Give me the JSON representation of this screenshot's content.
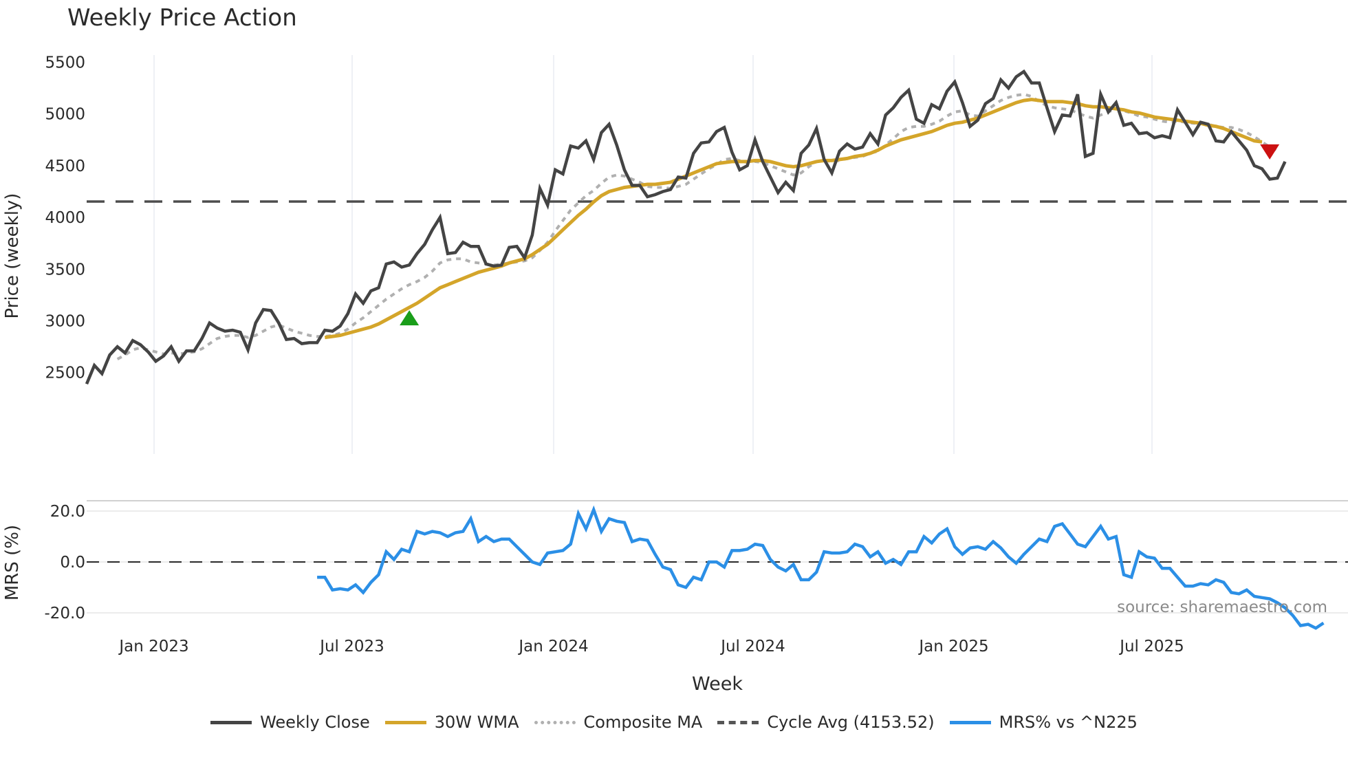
{
  "title": "Weekly Price Action",
  "source": "source: sharemaestro.com",
  "legend": [
    {
      "label": "Weekly Close",
      "color": "#444444",
      "style": "solid"
    },
    {
      "label": "30W WMA",
      "color": "#d4a52a",
      "style": "solid"
    },
    {
      "label": "Composite MA",
      "color": "#b0b0b0",
      "style": "dotted"
    },
    {
      "label": "Cycle Avg (4153.52)",
      "color": "#555555",
      "style": "dashed"
    },
    {
      "label": "MRS% vs ^N225",
      "color": "#2b8fe6",
      "style": "solid"
    }
  ],
  "chart_data": [
    {
      "type": "line",
      "title": "Weekly Price Action",
      "xlabel": "Week",
      "ylabel": "Price (weekly)",
      "ylim": [
        2400,
        5560
      ],
      "yticks": [
        2500,
        3000,
        3500,
        4000,
        4500,
        5000,
        5500
      ],
      "xticks": [
        "Jan 2023",
        "Jul 2023",
        "Jan 2024",
        "Jul 2024",
        "Jan 2025",
        "Jul 2025"
      ],
      "grid": true,
      "legend_position": "bottom",
      "cycle_avg": 4153.52,
      "signals": [
        {
          "type": "buy",
          "marker": "triangle-up",
          "color": "#1a9e1a",
          "week_index": 42,
          "value": 3010
        },
        {
          "type": "sell",
          "marker": "triangle-down",
          "color": "#cc1111",
          "week_index": 154,
          "value": 4640
        }
      ],
      "series": [
        {
          "name": "Weekly Close",
          "values": [
            2390,
            2570,
            2490,
            2670,
            2750,
            2690,
            2810,
            2770,
            2700,
            2610,
            2660,
            2750,
            2610,
            2710,
            2710,
            2830,
            2980,
            2930,
            2900,
            2910,
            2890,
            2720,
            2980,
            3110,
            3100,
            2980,
            2820,
            2830,
            2780,
            2790,
            2790,
            2910,
            2900,
            2950,
            3070,
            3260,
            3170,
            3290,
            3320,
            3550,
            3570,
            3520,
            3540,
            3650,
            3740,
            3880,
            4000,
            3650,
            3660,
            3760,
            3720,
            3720,
            3550,
            3530,
            3540,
            3710,
            3720,
            3610,
            3830,
            4280,
            4120,
            4460,
            4420,
            4690,
            4670,
            4740,
            4560,
            4820,
            4900,
            4700,
            4460,
            4310,
            4310,
            4200,
            4220,
            4250,
            4270,
            4390,
            4380,
            4620,
            4720,
            4730,
            4830,
            4870,
            4630,
            4460,
            4500,
            4750,
            4540,
            4390,
            4240,
            4340,
            4260,
            4620,
            4700,
            4860,
            4560,
            4430,
            4640,
            4710,
            4660,
            4680,
            4810,
            4710,
            4990,
            5060,
            5160,
            5230,
            4950,
            4910,
            5090,
            5050,
            5220,
            5310,
            5110,
            4880,
            4940,
            5100,
            5150,
            5330,
            5250,
            5360,
            5410,
            5300,
            5300,
            5060,
            4830,
            4990,
            4980,
            5190,
            4590,
            4620,
            5190,
            5020,
            5110,
            4890,
            4910,
            4810,
            4820,
            4770,
            4790,
            4770,
            5040,
            4920,
            4800,
            4920,
            4900,
            4740,
            4730,
            4830,
            4740,
            4650,
            4500,
            4470,
            4370,
            4380,
            4540
          ]
        },
        {
          "name": "30W WMA",
          "values": [
            null,
            null,
            null,
            null,
            null,
            null,
            null,
            null,
            null,
            null,
            null,
            null,
            null,
            null,
            null,
            null,
            null,
            null,
            null,
            null,
            null,
            null,
            null,
            null,
            null,
            null,
            null,
            null,
            null,
            null,
            null,
            2840,
            2850,
            2860,
            2880,
            2900,
            2920,
            2940,
            2970,
            3010,
            3050,
            3090,
            3130,
            3170,
            3220,
            3270,
            3320,
            3350,
            3380,
            3410,
            3440,
            3470,
            3490,
            3510,
            3530,
            3560,
            3580,
            3600,
            3640,
            3690,
            3740,
            3810,
            3880,
            3950,
            4020,
            4080,
            4150,
            4210,
            4250,
            4270,
            4290,
            4300,
            4310,
            4320,
            4320,
            4330,
            4340,
            4370,
            4400,
            4430,
            4460,
            4490,
            4520,
            4530,
            4540,
            4540,
            4540,
            4550,
            4550,
            4540,
            4520,
            4500,
            4490,
            4500,
            4520,
            4540,
            4550,
            4550,
            4560,
            4570,
            4590,
            4600,
            4620,
            4650,
            4690,
            4720,
            4750,
            4770,
            4790,
            4810,
            4830,
            4860,
            4890,
            4910,
            4920,
            4940,
            4960,
            4990,
            5020,
            5050,
            5080,
            5110,
            5130,
            5140,
            5130,
            5120,
            5120,
            5120,
            5110,
            5100,
            5080,
            5070,
            5070,
            5060,
            5050,
            5040,
            5020,
            5010,
            4990,
            4970,
            4960,
            4950,
            4940,
            4930,
            4920,
            4910,
            4890,
            4880,
            4860,
            4830,
            4800,
            4770,
            4740,
            4730
          ]
        },
        {
          "name": "Composite MA",
          "values": [
            null,
            null,
            null,
            null,
            2630,
            2670,
            2720,
            2740,
            2720,
            2700,
            2680,
            2690,
            2680,
            2690,
            2700,
            2730,
            2780,
            2830,
            2850,
            2860,
            2860,
            2840,
            2860,
            2900,
            2940,
            2960,
            2930,
            2900,
            2880,
            2860,
            2850,
            2850,
            2860,
            2880,
            2920,
            2980,
            3030,
            3090,
            3150,
            3210,
            3260,
            3310,
            3350,
            3380,
            3420,
            3480,
            3560,
            3590,
            3600,
            3600,
            3570,
            3560,
            3550,
            3540,
            3550,
            3560,
            3570,
            3580,
            3610,
            3680,
            3760,
            3870,
            3970,
            4070,
            4140,
            4210,
            4260,
            4330,
            4390,
            4410,
            4400,
            4370,
            4340,
            4300,
            4290,
            4290,
            4280,
            4300,
            4320,
            4370,
            4420,
            4470,
            4510,
            4560,
            4570,
            4550,
            4530,
            4540,
            4530,
            4500,
            4470,
            4440,
            4410,
            4430,
            4490,
            4540,
            4550,
            4540,
            4550,
            4570,
            4580,
            4590,
            4620,
            4640,
            4700,
            4760,
            4830,
            4870,
            4880,
            4880,
            4900,
            4930,
            4980,
            5020,
            5030,
            4990,
            4980,
            5030,
            5080,
            5130,
            5160,
            5180,
            5190,
            5170,
            5120,
            5080,
            5060,
            5050,
            5040,
            5010,
            4980,
            4960,
            4990,
            5020,
            5050,
            5030,
            5010,
            4980,
            4970,
            4950,
            4930,
            4920,
            4930,
            4920,
            4910,
            4910,
            4900,
            4880,
            4870,
            4870,
            4850,
            4820,
            4780,
            4730,
            4680,
            4650,
            null
          ]
        },
        {
          "name": "Cycle Avg (4153.52)",
          "values": [
            4153.52
          ]
        }
      ]
    },
    {
      "type": "line",
      "title": "",
      "xlabel": "Week",
      "ylabel": "MRS (%)",
      "ylim": [
        -26,
        26
      ],
      "yticks": [
        -20.0,
        0.0,
        20.0
      ],
      "xticks": [
        "Jan 2023",
        "Jul 2023",
        "Jan 2024",
        "Jul 2024",
        "Jan 2025",
        "Jul 2025"
      ],
      "series": [
        {
          "name": "MRS% vs ^N225",
          "start_index": 30,
          "values": [
            -6,
            -6,
            -11,
            -10.5,
            -11,
            -9,
            -12,
            -8,
            -5,
            4,
            1,
            5,
            4,
            12,
            11,
            12,
            11.5,
            10,
            11.5,
            12,
            17,
            8,
            10,
            8,
            9,
            9,
            6,
            3,
            0,
            -1,
            3.5,
            4,
            4.5,
            7,
            19,
            13,
            20.5,
            12,
            17,
            16,
            15.5,
            8,
            9,
            8.5,
            3,
            -2,
            -3,
            -9,
            -10,
            -6,
            -7,
            0,
            0,
            -2,
            4.5,
            4.5,
            5,
            7,
            6.5,
            1,
            -2,
            -3.5,
            -1,
            -7,
            -7,
            -4,
            4,
            3.5,
            3.5,
            4,
            7,
            6,
            2,
            4,
            -0.5,
            1,
            -1,
            4,
            4,
            10,
            7.5,
            11,
            13,
            6,
            3,
            5.5,
            6,
            5,
            8,
            5.5,
            2,
            -0.5,
            3,
            6,
            9,
            8,
            14,
            15,
            11,
            7,
            6,
            10,
            14,
            9,
            10,
            -5,
            -6,
            4,
            2,
            1.5,
            -2.5,
            -2.5,
            -6,
            -9.5,
            -9.5,
            -8.5,
            -9,
            -7,
            -8,
            -12,
            -12.5,
            -11,
            -13.5,
            -14,
            -14.5,
            -16,
            -18,
            -21,
            -25,
            -24.5,
            -26,
            -24
          ]
        }
      ]
    }
  ]
}
